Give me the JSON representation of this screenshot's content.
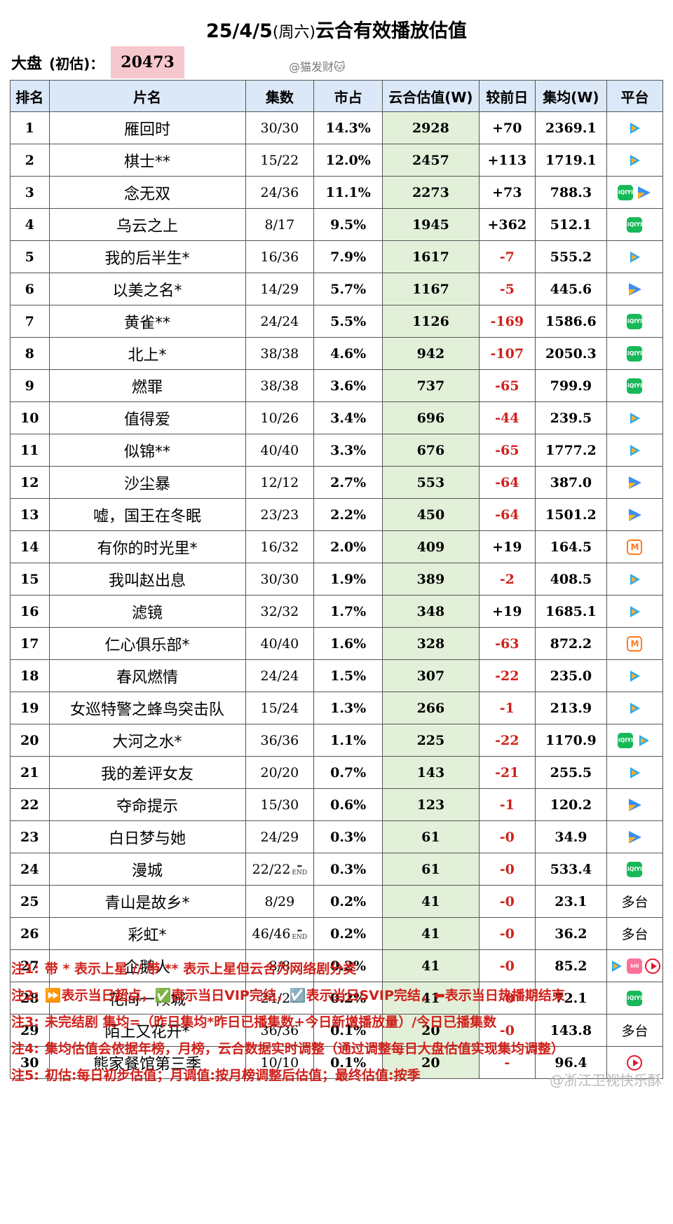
{
  "title": {
    "date": "25/4/5",
    "weekday": "(周六)",
    "text": "云合有效播放估值"
  },
  "market": {
    "label": "大盘",
    "note": "(初估)：",
    "value": "20473"
  },
  "watermark_top": "@猫发财🐱",
  "headers": [
    "排名",
    "片名",
    "集数",
    "市占",
    "云合估值(W)",
    "较前日",
    "集均(W)",
    "平台"
  ],
  "rows": [
    {
      "rank": "1",
      "name": "雁回时",
      "eps": "30/30",
      "share": "14.3%",
      "value": "2928",
      "change": "+70",
      "avg": "2369.1",
      "platform": [
        "tencent"
      ]
    },
    {
      "rank": "2",
      "name": "棋士**",
      "eps": "15/22",
      "share": "12.0%",
      "value": "2457",
      "change": "+113",
      "avg": "1719.1",
      "platform": [
        "tencent"
      ]
    },
    {
      "rank": "3",
      "name": "念无双",
      "eps": "24/36",
      "share": "11.1%",
      "value": "2273",
      "change": "+73",
      "avg": "788.3",
      "platform": [
        "iqiyi",
        "youku"
      ]
    },
    {
      "rank": "4",
      "name": "乌云之上",
      "eps": "8/17",
      "share": "9.5%",
      "value": "1945",
      "change": "+362",
      "avg": "512.1",
      "platform": [
        "iqiyi"
      ]
    },
    {
      "rank": "5",
      "name": "我的后半生*",
      "eps": "16/36",
      "share": "7.9%",
      "value": "1617",
      "change": "-7",
      "avg": "555.2",
      "platform": [
        "tencent"
      ]
    },
    {
      "rank": "6",
      "name": "以美之名*",
      "eps": "14/29",
      "share": "5.7%",
      "value": "1167",
      "change": "-5",
      "avg": "445.6",
      "platform": [
        "youku"
      ]
    },
    {
      "rank": "7",
      "name": "黄雀**",
      "eps": "24/24",
      "share": "5.5%",
      "value": "1126",
      "change": "-169",
      "avg": "1586.6",
      "platform": [
        "iqiyi"
      ]
    },
    {
      "rank": "8",
      "name": "北上*",
      "eps": "38/38",
      "share": "4.6%",
      "value": "942",
      "change": "-107",
      "avg": "2050.3",
      "platform": [
        "iqiyi"
      ]
    },
    {
      "rank": "9",
      "name": "燃罪",
      "eps": "38/38",
      "share": "3.6%",
      "value": "737",
      "change": "-65",
      "avg": "799.9",
      "platform": [
        "iqiyi"
      ]
    },
    {
      "rank": "10",
      "name": "值得爱",
      "eps": "10/26",
      "share": "3.4%",
      "value": "696",
      "change": "-44",
      "avg": "239.5",
      "platform": [
        "tencent"
      ]
    },
    {
      "rank": "11",
      "name": "似锦**",
      "eps": "40/40",
      "share": "3.3%",
      "value": "676",
      "change": "-65",
      "avg": "1777.2",
      "platform": [
        "tencent"
      ]
    },
    {
      "rank": "12",
      "name": "沙尘暴",
      "eps": "12/12",
      "share": "2.7%",
      "value": "553",
      "change": "-64",
      "avg": "387.0",
      "platform": [
        "youku"
      ]
    },
    {
      "rank": "13",
      "name": "嘘，国王在冬眠",
      "eps": "23/23",
      "share": "2.2%",
      "value": "450",
      "change": "-64",
      "avg": "1501.2",
      "platform": [
        "youku"
      ]
    },
    {
      "rank": "14",
      "name": "有你的时光里*",
      "eps": "16/32",
      "share": "2.0%",
      "value": "409",
      "change": "+19",
      "avg": "164.5",
      "platform": [
        "mgtv"
      ]
    },
    {
      "rank": "15",
      "name": "我叫赵出息",
      "eps": "30/30",
      "share": "1.9%",
      "value": "389",
      "change": "-2",
      "avg": "408.5",
      "platform": [
        "tencent"
      ]
    },
    {
      "rank": "16",
      "name": "滤镜",
      "eps": "32/32",
      "share": "1.7%",
      "value": "348",
      "change": "+19",
      "avg": "1685.1",
      "platform": [
        "tencent"
      ]
    },
    {
      "rank": "17",
      "name": "仁心俱乐部*",
      "eps": "40/40",
      "share": "1.6%",
      "value": "328",
      "change": "-63",
      "avg": "872.2",
      "platform": [
        "mgtv"
      ]
    },
    {
      "rank": "18",
      "name": "春风燃情",
      "eps": "24/24",
      "share": "1.5%",
      "value": "307",
      "change": "-22",
      "avg": "235.0",
      "platform": [
        "tencent"
      ]
    },
    {
      "rank": "19",
      "name": "女巡特警之蜂鸟突击队",
      "eps": "15/24",
      "share": "1.3%",
      "value": "266",
      "change": "-1",
      "avg": "213.9",
      "platform": [
        "tencent"
      ]
    },
    {
      "rank": "20",
      "name": "大河之水*",
      "eps": "36/36",
      "share": "1.1%",
      "value": "225",
      "change": "-22",
      "avg": "1170.9",
      "platform": [
        "iqiyi",
        "tencent"
      ]
    },
    {
      "rank": "21",
      "name": "我的差评女友",
      "eps": "20/20",
      "share": "0.7%",
      "value": "143",
      "change": "-21",
      "avg": "255.5",
      "platform": [
        "tencent"
      ]
    },
    {
      "rank": "22",
      "name": "夺命提示",
      "eps": "15/30",
      "share": "0.6%",
      "value": "123",
      "change": "-1",
      "avg": "120.2",
      "platform": [
        "youku"
      ]
    },
    {
      "rank": "23",
      "name": "白日梦与她",
      "eps": "24/29",
      "share": "0.3%",
      "value": "61",
      "change": "-0",
      "avg": "34.9",
      "platform": [
        "youku"
      ]
    },
    {
      "rank": "24",
      "name": "漫城",
      "eps": "22/22",
      "end": true,
      "share": "0.3%",
      "value": "61",
      "change": "-0",
      "avg": "533.4",
      "platform": [
        "iqiyi"
      ]
    },
    {
      "rank": "25",
      "name": "青山是故乡*",
      "eps": "8/29",
      "share": "0.2%",
      "value": "41",
      "change": "-0",
      "avg": "23.1",
      "platform_text": "多台"
    },
    {
      "rank": "26",
      "name": "彩虹*",
      "eps": "46/46",
      "end": true,
      "share": "0.2%",
      "value": "41",
      "change": "-0",
      "avg": "36.2",
      "platform_text": "多台"
    },
    {
      "rank": "27",
      "name": "企鹅人",
      "eps": "8/8",
      "share": "0.2%",
      "value": "41",
      "change": "-0",
      "avg": "85.2",
      "platform": [
        "tencent",
        "bilibili",
        "kuaiyin"
      ]
    },
    {
      "rank": "28",
      "name": "花间一倾城",
      "eps": "24/24",
      "share": "0.2%",
      "value": "41",
      "change": "-0",
      "avg": "72.1",
      "platform": [
        "iqiyi"
      ]
    },
    {
      "rank": "29",
      "name": "陌上又花开*",
      "eps": "36/36",
      "share": "0.1%",
      "value": "20",
      "change": "-0",
      "avg": "143.8",
      "platform_text": "多台"
    },
    {
      "rank": "30",
      "name": "熊家餐馆第三季",
      "eps": "10/10",
      "share": "0.1%",
      "value": "20",
      "change": "-",
      "avg": "96.4",
      "platform": [
        "kuaiyin"
      ]
    }
  ],
  "end_mark": "END",
  "notes": [
    {
      "key": "注1:",
      "text": "带 * 表示上星 // 带 ** 表示上星但云合为网络剧分类"
    },
    {
      "key": "注2:",
      "text": "⏩表示当日超点，✅表示当日VIP完结，☑️表示当日SVIP完结，⬅表示当日热播期结束"
    },
    {
      "key": "注3:",
      "text": "未完结剧 集均=（昨日集均*昨日已播集数+今日新增播放量）/今日已播集数"
    },
    {
      "key": "注4:",
      "text": "集均估值会依据年榜，月榜，云合数据实时调整（通过调整每日大盘估值实现集均调整）"
    },
    {
      "key": "注5:",
      "text": "初估:每日初步估值；月调值:按月榜调整后估值；最终估值:按季"
    }
  ],
  "watermark_bottom": "@浙江卫视快乐酥",
  "colors": {
    "header_bg": "#dbe8f7",
    "value_col_bg": "#e3f0d9",
    "negative": "#d0211b",
    "market_bg": "#f6c7cc"
  }
}
